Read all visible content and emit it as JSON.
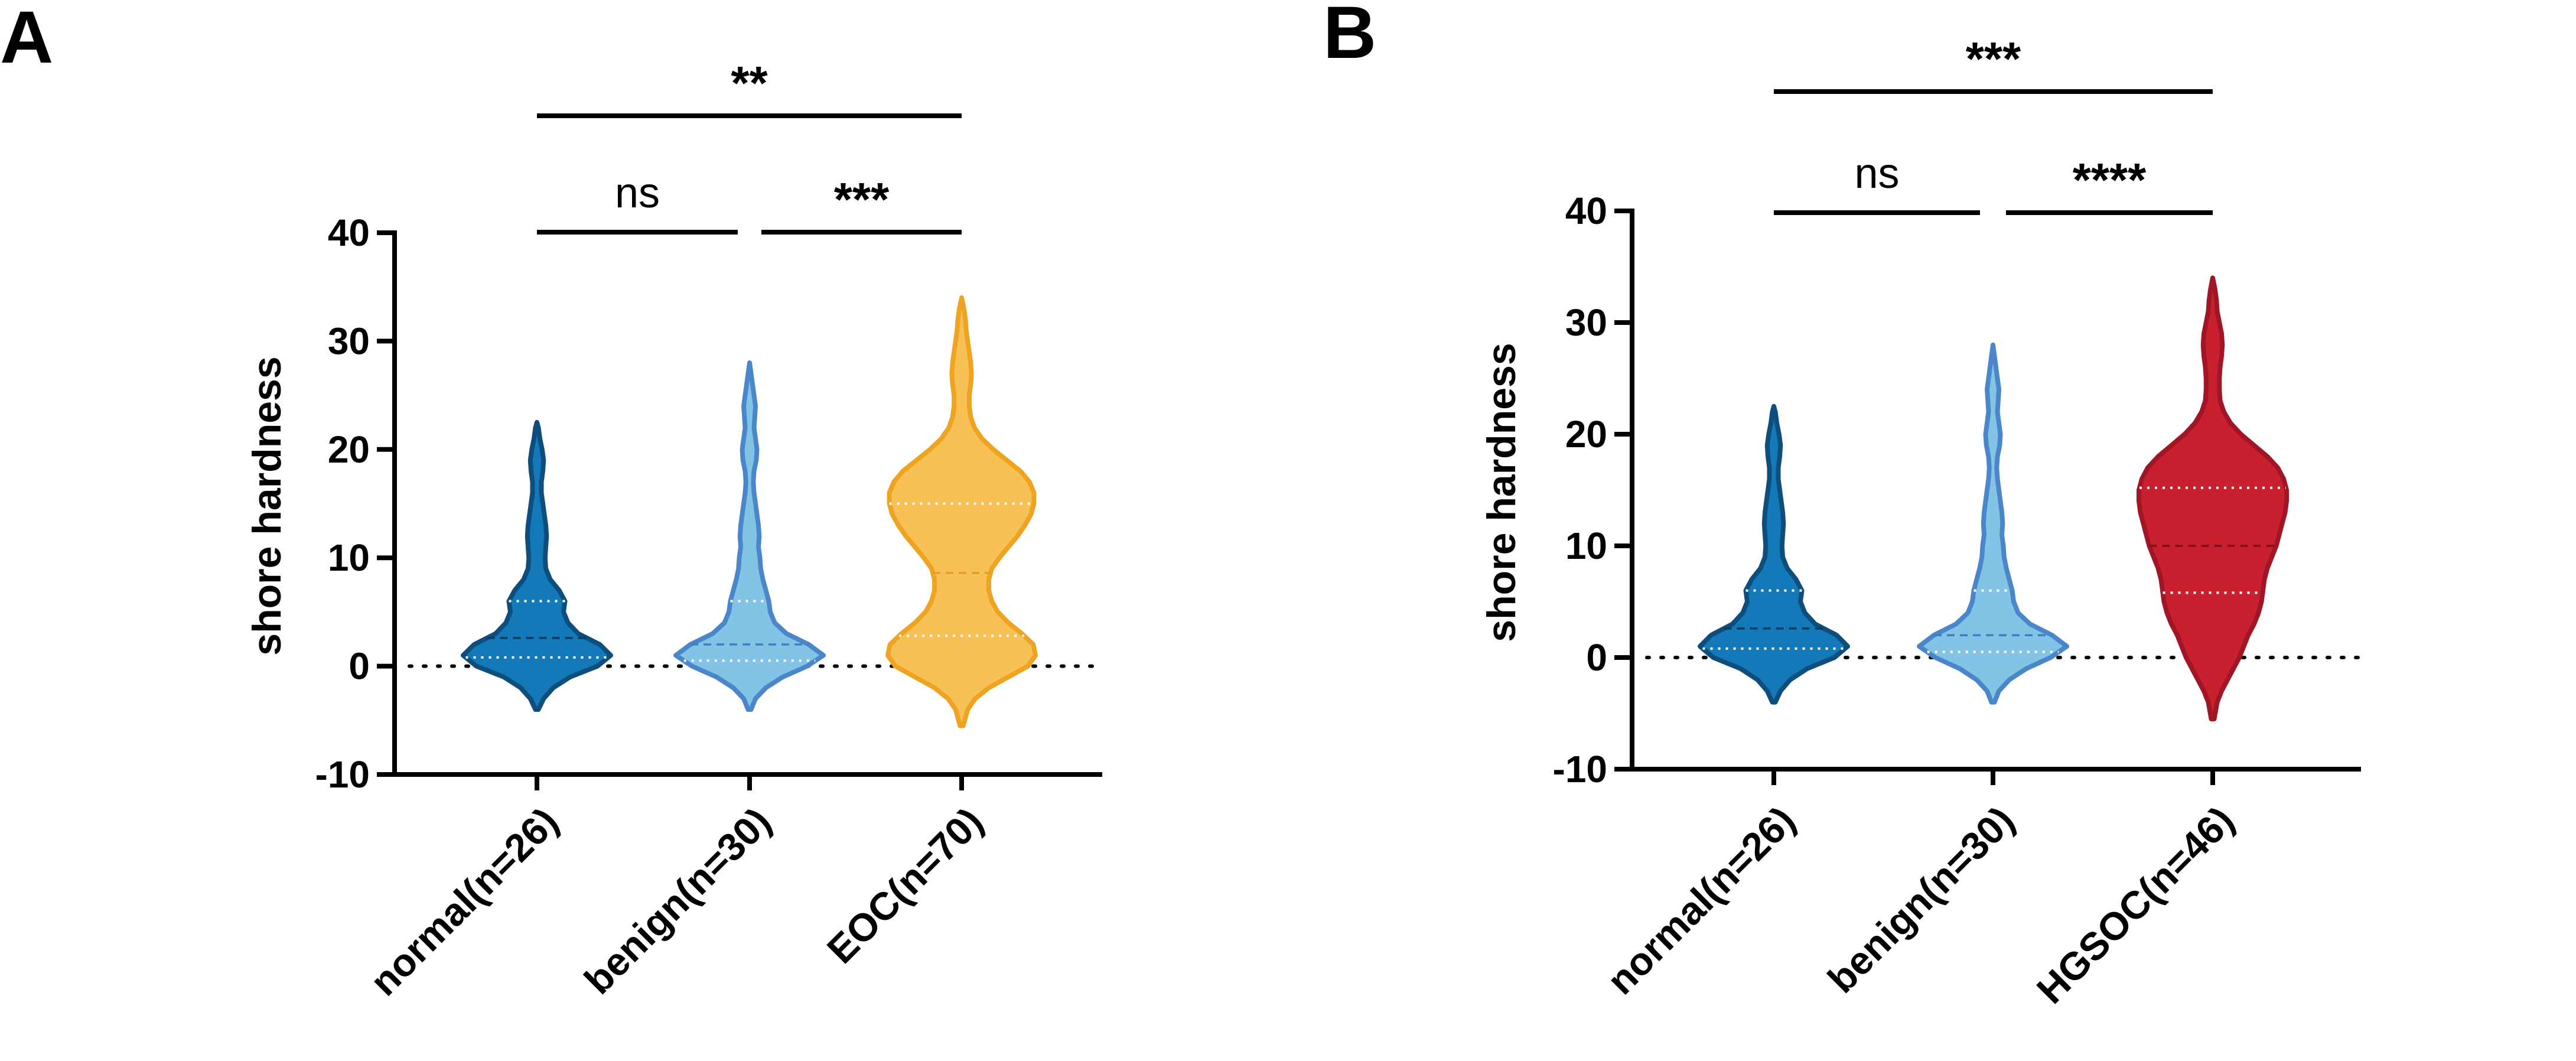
{
  "chart_data": [
    {
      "panel": "A",
      "type": "violin",
      "ylabel": "shore hardness",
      "ylim": [
        -10,
        40
      ],
      "yticks": [
        40,
        30,
        20,
        10,
        0,
        -10
      ],
      "reference_line": 0,
      "groups": [
        {
          "label": "normal(n=26)",
          "fill": "#1479b8",
          "stroke": "#0d4e7c",
          "median_color": "#083a5e",
          "min": -4,
          "max": 22.5,
          "q1": 0.8,
          "median": 2.6,
          "q3": 6.0,
          "density": [
            [
              -4,
              0.02
            ],
            [
              -3,
              0.09
            ],
            [
              -2,
              0.22
            ],
            [
              -1,
              0.45
            ],
            [
              0,
              0.82
            ],
            [
              1,
              1.0
            ],
            [
              2,
              0.85
            ],
            [
              3,
              0.56
            ],
            [
              4,
              0.42
            ],
            [
              5,
              0.36
            ],
            [
              6,
              0.38
            ],
            [
              7,
              0.3
            ],
            [
              8,
              0.18
            ],
            [
              9,
              0.12
            ],
            [
              10,
              0.11
            ],
            [
              11,
              0.12
            ],
            [
              12,
              0.13
            ],
            [
              13,
              0.12
            ],
            [
              14,
              0.1
            ],
            [
              15,
              0.08
            ],
            [
              16,
              0.06
            ],
            [
              17,
              0.06
            ],
            [
              18,
              0.08
            ],
            [
              19,
              0.09
            ],
            [
              20,
              0.07
            ],
            [
              21,
              0.04
            ],
            [
              22,
              0.02
            ],
            [
              22.5,
              0
            ]
          ]
        },
        {
          "label": "benign(n=30)",
          "fill": "#83c4e6",
          "stroke": "#4a86c9",
          "median_color": "#3d7fc0",
          "min": -4,
          "max": 28,
          "q1": 0.5,
          "median": 2.0,
          "q3": 6.0,
          "density": [
            [
              -4,
              0.02
            ],
            [
              -3,
              0.08
            ],
            [
              -2,
              0.22
            ],
            [
              -1,
              0.45
            ],
            [
              0,
              0.78
            ],
            [
              1,
              1.0
            ],
            [
              2,
              0.8
            ],
            [
              3,
              0.5
            ],
            [
              4,
              0.34
            ],
            [
              5,
              0.28
            ],
            [
              6,
              0.26
            ],
            [
              7,
              0.22
            ],
            [
              8,
              0.18
            ],
            [
              9,
              0.15
            ],
            [
              10,
              0.14
            ],
            [
              11,
              0.12
            ],
            [
              12,
              0.13
            ],
            [
              13,
              0.12
            ],
            [
              14,
              0.1
            ],
            [
              15,
              0.08
            ],
            [
              16,
              0.06
            ],
            [
              17,
              0.05
            ],
            [
              18,
              0.06
            ],
            [
              19,
              0.09
            ],
            [
              20,
              0.1
            ],
            [
              21,
              0.08
            ],
            [
              22,
              0.06
            ],
            [
              23,
              0.07
            ],
            [
              24,
              0.08
            ],
            [
              25,
              0.06
            ],
            [
              26,
              0.04
            ],
            [
              27,
              0.02
            ],
            [
              28,
              0
            ]
          ]
        },
        {
          "label": "EOC(n=70)",
          "fill": "#f7c155",
          "stroke": "#eea321",
          "median_color": "#e89c2a",
          "min": -5.5,
          "max": 34,
          "q1": 2.8,
          "median": 8.6,
          "q3": 15.0,
          "density": [
            [
              -5.5,
              0.02
            ],
            [
              -4,
              0.08
            ],
            [
              -3,
              0.18
            ],
            [
              -2,
              0.36
            ],
            [
              -1,
              0.62
            ],
            [
              0,
              0.88
            ],
            [
              1,
              0.98
            ],
            [
              2,
              0.95
            ],
            [
              3,
              0.8
            ],
            [
              4,
              0.62
            ],
            [
              5,
              0.48
            ],
            [
              6,
              0.4
            ],
            [
              7,
              0.36
            ],
            [
              8,
              0.36
            ],
            [
              9,
              0.4
            ],
            [
              10,
              0.5
            ],
            [
              11,
              0.62
            ],
            [
              12,
              0.74
            ],
            [
              13,
              0.84
            ],
            [
              14,
              0.92
            ],
            [
              15,
              0.96
            ],
            [
              16,
              0.96
            ],
            [
              17,
              0.9
            ],
            [
              18,
              0.78
            ],
            [
              19,
              0.6
            ],
            [
              20,
              0.42
            ],
            [
              21,
              0.27
            ],
            [
              22,
              0.17
            ],
            [
              23,
              0.12
            ],
            [
              24,
              0.1
            ],
            [
              25,
              0.1
            ],
            [
              26,
              0.12
            ],
            [
              27,
              0.13
            ],
            [
              28,
              0.12
            ],
            [
              29,
              0.1
            ],
            [
              30,
              0.08
            ],
            [
              31,
              0.06
            ],
            [
              32,
              0.05
            ],
            [
              33,
              0.03
            ],
            [
              34,
              0
            ]
          ]
        }
      ],
      "comparisons": [
        {
          "from": 0,
          "to": 2,
          "label": "**",
          "ns": false
        },
        {
          "from": 0,
          "to": 1,
          "label": "ns",
          "ns": true
        },
        {
          "from": 1,
          "to": 2,
          "label": "***",
          "ns": false
        }
      ]
    },
    {
      "panel": "B",
      "type": "violin",
      "ylabel": "shore hardness",
      "ylim": [
        -10,
        40
      ],
      "yticks": [
        40,
        30,
        20,
        10,
        0,
        -10
      ],
      "reference_line": 0,
      "groups": [
        {
          "label": "normal(n=26)",
          "fill": "#1479b8",
          "stroke": "#0d4e7c",
          "median_color": "#083a5e",
          "min": -4,
          "max": 22.5,
          "q1": 0.8,
          "median": 2.6,
          "q3": 6.0,
          "density": [
            [
              -4,
              0.02
            ],
            [
              -3,
              0.09
            ],
            [
              -2,
              0.22
            ],
            [
              -1,
              0.45
            ],
            [
              0,
              0.82
            ],
            [
              1,
              1.0
            ],
            [
              2,
              0.85
            ],
            [
              3,
              0.56
            ],
            [
              4,
              0.42
            ],
            [
              5,
              0.36
            ],
            [
              6,
              0.38
            ],
            [
              7,
              0.3
            ],
            [
              8,
              0.18
            ],
            [
              9,
              0.12
            ],
            [
              10,
              0.11
            ],
            [
              11,
              0.12
            ],
            [
              12,
              0.13
            ],
            [
              13,
              0.12
            ],
            [
              14,
              0.1
            ],
            [
              15,
              0.08
            ],
            [
              16,
              0.06
            ],
            [
              17,
              0.06
            ],
            [
              18,
              0.08
            ],
            [
              19,
              0.09
            ],
            [
              20,
              0.07
            ],
            [
              21,
              0.04
            ],
            [
              22,
              0.02
            ],
            [
              22.5,
              0
            ]
          ]
        },
        {
          "label": "benign(n=30)",
          "fill": "#83c4e6",
          "stroke": "#4a86c9",
          "median_color": "#3d7fc0",
          "min": -4,
          "max": 28,
          "q1": 0.5,
          "median": 2.0,
          "q3": 6.0,
          "density": [
            [
              -4,
              0.02
            ],
            [
              -3,
              0.08
            ],
            [
              -2,
              0.22
            ],
            [
              -1,
              0.45
            ],
            [
              0,
              0.78
            ],
            [
              1,
              1.0
            ],
            [
              2,
              0.8
            ],
            [
              3,
              0.5
            ],
            [
              4,
              0.34
            ],
            [
              5,
              0.28
            ],
            [
              6,
              0.26
            ],
            [
              7,
              0.22
            ],
            [
              8,
              0.18
            ],
            [
              9,
              0.15
            ],
            [
              10,
              0.14
            ],
            [
              11,
              0.12
            ],
            [
              12,
              0.13
            ],
            [
              13,
              0.12
            ],
            [
              14,
              0.1
            ],
            [
              15,
              0.08
            ],
            [
              16,
              0.06
            ],
            [
              17,
              0.05
            ],
            [
              18,
              0.06
            ],
            [
              19,
              0.09
            ],
            [
              20,
              0.1
            ],
            [
              21,
              0.08
            ],
            [
              22,
              0.06
            ],
            [
              23,
              0.07
            ],
            [
              24,
              0.08
            ],
            [
              25,
              0.06
            ],
            [
              26,
              0.04
            ],
            [
              27,
              0.02
            ],
            [
              28,
              0
            ]
          ]
        },
        {
          "label": "HGSOC(n=46)",
          "fill": "#c8202f",
          "stroke": "#a01626",
          "median_color": "#7e0f1b",
          "min": -5.5,
          "max": 34,
          "q1": 5.8,
          "median": 10.0,
          "q3": 15.2,
          "density": [
            [
              -5.5,
              0.02
            ],
            [
              -4,
              0.06
            ],
            [
              -3,
              0.12
            ],
            [
              -2,
              0.2
            ],
            [
              -1,
              0.28
            ],
            [
              0,
              0.36
            ],
            [
              1,
              0.42
            ],
            [
              2,
              0.48
            ],
            [
              3,
              0.56
            ],
            [
              4,
              0.62
            ],
            [
              5,
              0.66
            ],
            [
              6,
              0.68
            ],
            [
              7,
              0.7
            ],
            [
              8,
              0.74
            ],
            [
              9,
              0.8
            ],
            [
              10,
              0.86
            ],
            [
              11,
              0.9
            ],
            [
              12,
              0.94
            ],
            [
              13,
              0.98
            ],
            [
              14,
              1.0
            ],
            [
              15,
              1.0
            ],
            [
              16,
              0.96
            ],
            [
              17,
              0.88
            ],
            [
              18,
              0.74
            ],
            [
              19,
              0.56
            ],
            [
              20,
              0.38
            ],
            [
              21,
              0.24
            ],
            [
              22,
              0.15
            ],
            [
              23,
              0.1
            ],
            [
              24,
              0.09
            ],
            [
              25,
              0.09
            ],
            [
              26,
              0.1
            ],
            [
              27,
              0.12
            ],
            [
              28,
              0.13
            ],
            [
              29,
              0.12
            ],
            [
              30,
              0.09
            ],
            [
              31,
              0.06
            ],
            [
              32,
              0.05
            ],
            [
              33,
              0.03
            ],
            [
              34,
              0
            ]
          ]
        }
      ],
      "comparisons": [
        {
          "from": 0,
          "to": 2,
          "label": "***",
          "ns": false
        },
        {
          "from": 0,
          "to": 1,
          "label": "ns",
          "ns": true
        },
        {
          "from": 1,
          "to": 2,
          "label": "****",
          "ns": false
        }
      ]
    }
  ]
}
